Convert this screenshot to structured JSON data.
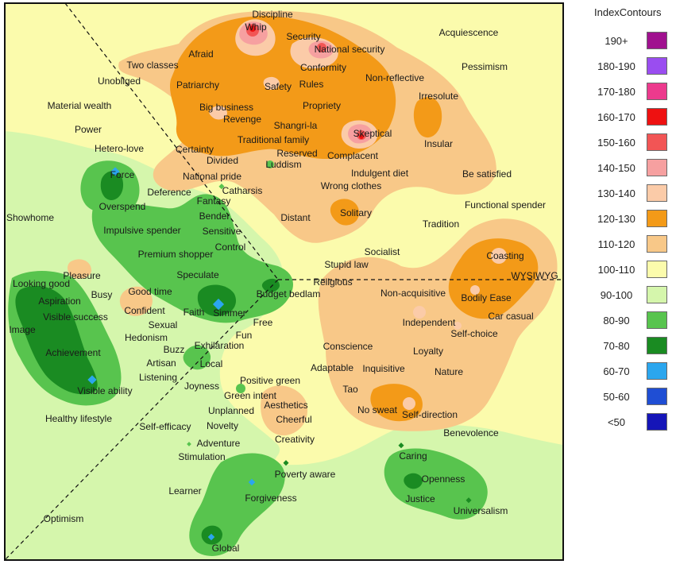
{
  "legend": {
    "title": "IndexContours",
    "items": [
      {
        "label": "190+",
        "color": "#a0118f"
      },
      {
        "label": "180-190",
        "color": "#9a4df0"
      },
      {
        "label": "170-180",
        "color": "#ec3a8d"
      },
      {
        "label": "160-170",
        "color": "#ee1111"
      },
      {
        "label": "150-160",
        "color": "#f25555"
      },
      {
        "label": "140-150",
        "color": "#f6a0a0"
      },
      {
        "label": "130-140",
        "color": "#fbcba8"
      },
      {
        "label": "120-130",
        "color": "#f39a18"
      },
      {
        "label": "110-120",
        "color": "#f8c888"
      },
      {
        "label": "100-110",
        "color": "#fbfbac"
      },
      {
        "label": "90-100",
        "color": "#d5f6ac"
      },
      {
        "label": "80-90",
        "color": "#58c44e"
      },
      {
        "label": "70-80",
        "color": "#1a8b22"
      },
      {
        "label": "60-70",
        "color": "#2ba6ee"
      },
      {
        "label": "50-60",
        "color": "#1f4ed4"
      },
      {
        "label": "<50",
        "color": "#1515b8"
      }
    ]
  },
  "chart_data": {
    "type": "heatmap",
    "title": "",
    "xlabel": "",
    "ylabel": "",
    "labels": [
      "Discipline",
      "Whip",
      "Security",
      "National security",
      "Acquiescence",
      "Pessimism",
      "Two classes",
      "Afraid",
      "Conformity",
      "Unobliged",
      "Patriarchy",
      "Safety",
      "Rules",
      "Non-reflective",
      "Irresolute",
      "Material wealth",
      "Big business",
      "Propriety",
      "Revenge",
      "Shangri-la",
      "Power",
      "Skeptical",
      "Traditional family",
      "Insular",
      "Hetero-love",
      "Certainty",
      "Reserved",
      "Complacent",
      "Divided",
      "Luddism",
      "Indulgent diet",
      "Be satisfied",
      "Force",
      "National pride",
      "Wrong clothes",
      "Deference",
      "Catharsis",
      "Fantasy",
      "Functional spender",
      "Overspend",
      "Showhome",
      "Bender",
      "Distant",
      "Solitary",
      "Tradition",
      "Impulsive spender",
      "Sensitive",
      "Control",
      "Socialist",
      "Premium shopper",
      "Coasting",
      "Stupid law",
      "Speculate",
      "Pleasure",
      "Religious",
      "WYSIWYG",
      "Looking good",
      "Busy",
      "Good time",
      "Budget bedlam",
      "Non-acquisitive",
      "Aspiration",
      "Bodily Ease",
      "Confident",
      "Faith",
      "Simmer",
      "Visible success",
      "Car casual",
      "Sexual",
      "Free",
      "Independent",
      "Self-choice",
      "Image",
      "Hedonism",
      "Fun",
      "Conscience",
      "Buzz",
      "Exhilaration",
      "Loyalty",
      "Achievement",
      "Artisan",
      "Local",
      "Adaptable",
      "Inquisitive",
      "Nature",
      "Listening",
      "Positive green",
      "Joyness",
      "Tao",
      "Visible ability",
      "Green intent",
      "Aesthetics",
      "No sweat",
      "Self-direction",
      "Unplanned",
      "Healthy lifestyle",
      "Cheerful",
      "Self-efficacy",
      "Novelty",
      "Benevolence",
      "Creativity",
      "Adventure",
      "Stimulation",
      "Caring",
      "Poverty aware",
      "Openness",
      "Learner",
      "Forgiveness",
      "Justice",
      "Universalism",
      "Optimism",
      "Global"
    ]
  }
}
